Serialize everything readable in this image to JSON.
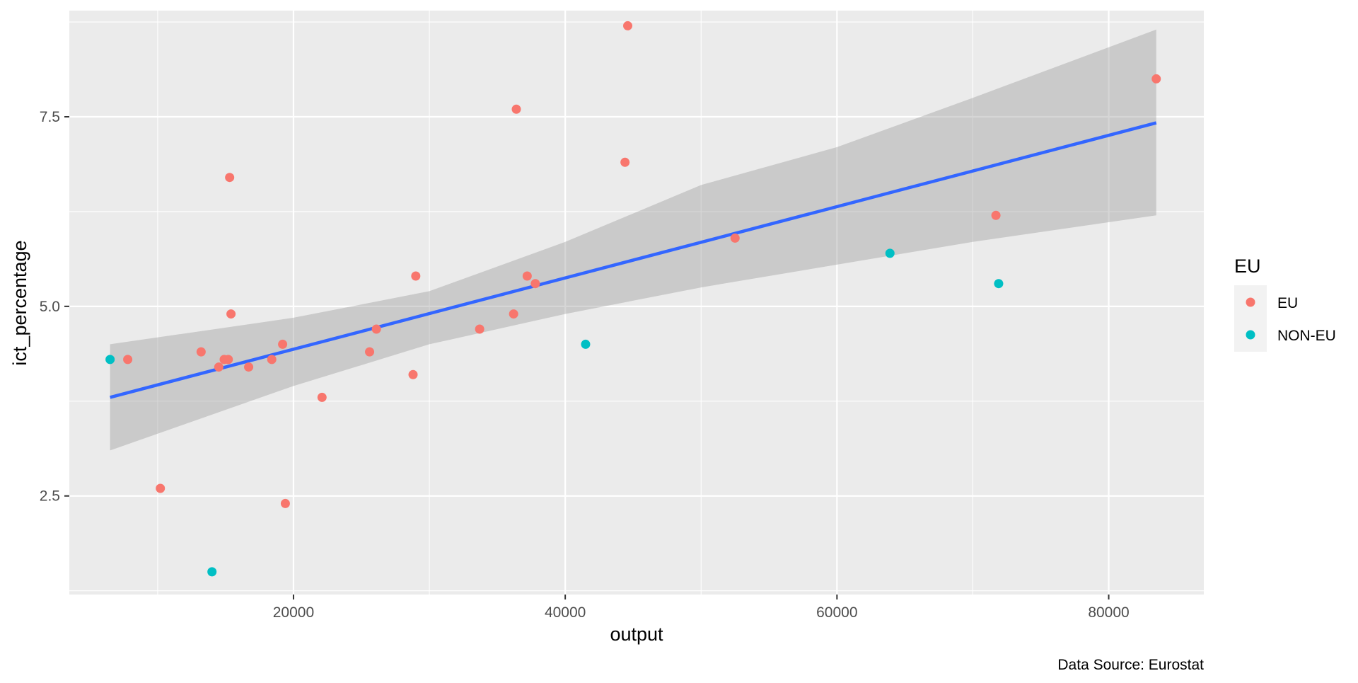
{
  "chart_data": {
    "type": "scatter",
    "xlabel": "output",
    "ylabel": "ict_percentage",
    "caption": "Data Source: Eurostat",
    "xlim": [
      3500,
      87000
    ],
    "ylim": [
      1.2,
      8.9
    ],
    "x_ticks": [
      20000,
      40000,
      60000,
      80000
    ],
    "x_tick_labels": [
      "20000",
      "40000",
      "60000",
      "80000"
    ],
    "y_ticks": [
      2.5,
      5.0,
      7.5
    ],
    "y_tick_labels": [
      "2.5",
      "5.0",
      "7.5"
    ],
    "grid": true,
    "legend": {
      "title": "EU",
      "position": "right",
      "entries": [
        {
          "label": "EU",
          "color": "#F8766D"
        },
        {
          "label": "NON-EU",
          "color": "#00BFC4"
        }
      ]
    },
    "series": [
      {
        "name": "EU",
        "color": "#F8766D",
        "points": [
          [
            7800,
            4.3
          ],
          [
            10200,
            2.6
          ],
          [
            13200,
            4.4
          ],
          [
            14500,
            4.2
          ],
          [
            14900,
            4.3
          ],
          [
            15200,
            4.3
          ],
          [
            15300,
            6.7
          ],
          [
            15400,
            4.9
          ],
          [
            16700,
            4.2
          ],
          [
            18400,
            4.3
          ],
          [
            19200,
            4.5
          ],
          [
            19400,
            2.4
          ],
          [
            22100,
            3.8
          ],
          [
            25600,
            4.4
          ],
          [
            26100,
            4.7
          ],
          [
            28800,
            4.1
          ],
          [
            29000,
            5.4
          ],
          [
            33700,
            4.7
          ],
          [
            36200,
            4.9
          ],
          [
            36400,
            7.6
          ],
          [
            37200,
            5.4
          ],
          [
            37800,
            5.3
          ],
          [
            44400,
            6.9
          ],
          [
            44600,
            8.7
          ],
          [
            52500,
            5.9
          ],
          [
            71700,
            6.2
          ],
          [
            83500,
            8.0
          ]
        ]
      },
      {
        "name": "NON-EU",
        "color": "#00BFC4",
        "points": [
          [
            6500,
            4.3
          ],
          [
            14000,
            1.5
          ],
          [
            41500,
            4.5
          ],
          [
            63900,
            5.7
          ],
          [
            71900,
            5.3
          ]
        ]
      }
    ],
    "smooth": {
      "method": "lm",
      "color": "#3366FF",
      "band_color": "#999999",
      "line": [
        [
          6500,
          3.8
        ],
        [
          83500,
          7.42
        ]
      ],
      "band": [
        [
          6500,
          3.1,
          4.5
        ],
        [
          20000,
          3.95,
          4.85
        ],
        [
          30000,
          4.5,
          5.2
        ],
        [
          40000,
          4.9,
          5.85
        ],
        [
          50000,
          5.25,
          6.6
        ],
        [
          60000,
          5.55,
          7.1
        ],
        [
          70000,
          5.85,
          7.75
        ],
        [
          83500,
          6.2,
          8.65
        ]
      ]
    }
  }
}
